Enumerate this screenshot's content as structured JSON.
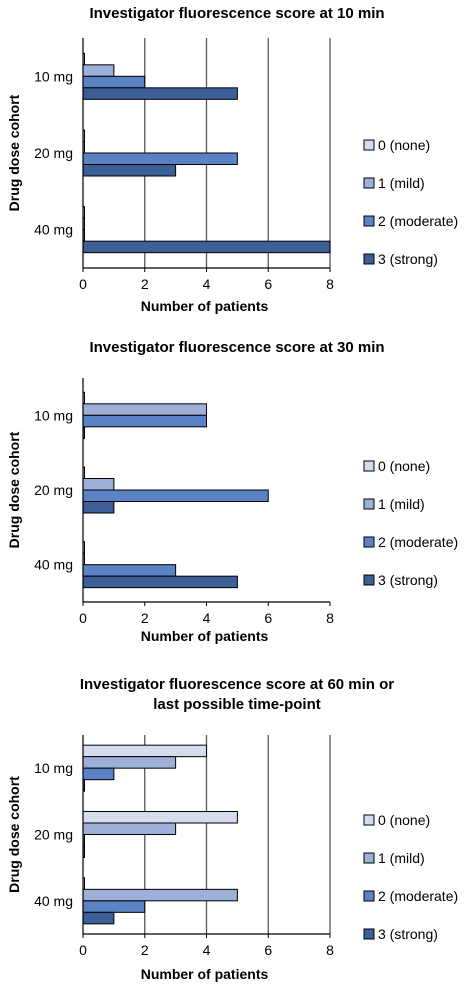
{
  "chart_data": [
    {
      "type": "bar",
      "orientation": "horizontal",
      "title": "Investigator fluorescence score at 10 min",
      "xlabel": "Number of patients",
      "ylabel": "Drug dose cohort",
      "categories": [
        "10 mg",
        "20 mg",
        "40 mg"
      ],
      "xlim": [
        0,
        8
      ],
      "xticks": [
        "0",
        "2",
        "4",
        "6",
        "8"
      ],
      "grid": true,
      "legend": "right",
      "series": [
        {
          "name": "0 (none)",
          "values": [
            0,
            0,
            0
          ]
        },
        {
          "name": "1 (mild)",
          "values": [
            1,
            0,
            0
          ]
        },
        {
          "name": "2 (moderate)",
          "values": [
            2,
            5,
            0
          ]
        },
        {
          "name": "3 (strong)",
          "values": [
            5,
            3,
            8
          ]
        }
      ]
    },
    {
      "type": "bar",
      "orientation": "horizontal",
      "title": "Investigator fluorescence score at 30 min",
      "xlabel": "Number of patients",
      "ylabel": "Drug dose cohort",
      "categories": [
        "10 mg",
        "20 mg",
        "40 mg"
      ],
      "xlim": [
        0,
        8
      ],
      "xticks": [
        "0",
        "2",
        "4",
        "6",
        "8"
      ],
      "grid": false,
      "legend": "right",
      "series": [
        {
          "name": "0 (none)",
          "values": [
            0,
            0,
            0
          ]
        },
        {
          "name": "1 (mild)",
          "values": [
            4,
            1,
            0
          ]
        },
        {
          "name": "2 (moderate)",
          "values": [
            4,
            6,
            3
          ]
        },
        {
          "name": "3 (strong)",
          "values": [
            0,
            1,
            5
          ]
        }
      ]
    },
    {
      "type": "bar",
      "orientation": "horizontal",
      "title": "Investigator fluorescence score at 60 min or last possible time-point",
      "title_lines": [
        "Investigator fluorescence score at 60 min or",
        "last possible time-point"
      ],
      "xlabel": "Number of patients",
      "ylabel": "Drug dose cohort",
      "categories": [
        "10 mg",
        "20 mg",
        "40 mg"
      ],
      "xlim": [
        0,
        8
      ],
      "xticks": [
        "0",
        "2",
        "4",
        "6",
        "8"
      ],
      "grid": true,
      "legend": "right",
      "series": [
        {
          "name": "0 (none)",
          "values": [
            4,
            5,
            0
          ]
        },
        {
          "name": "1 (mild)",
          "values": [
            3,
            3,
            5
          ]
        },
        {
          "name": "2 (moderate)",
          "values": [
            1,
            0,
            2
          ]
        },
        {
          "name": "3 (strong)",
          "values": [
            0,
            0,
            1
          ]
        }
      ]
    }
  ],
  "colors": {
    "series": [
      "#d4dcee",
      "#9cb0d8",
      "#5a82c4",
      "#3c5f98"
    ],
    "grid": "#555555",
    "axis": "#000000"
  }
}
